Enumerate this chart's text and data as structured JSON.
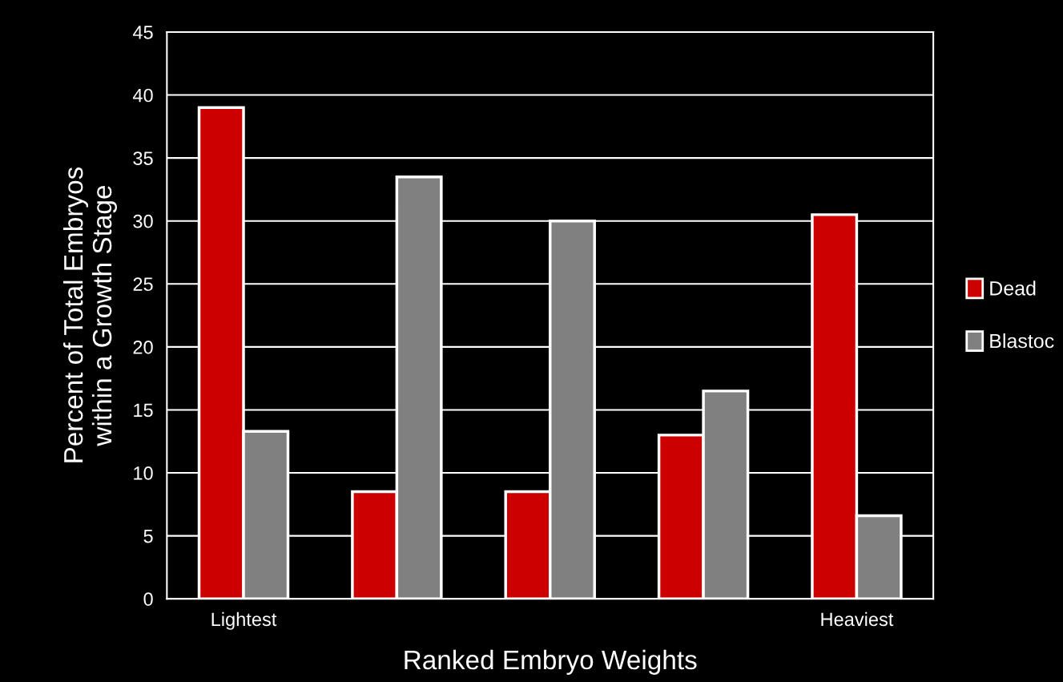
{
  "chart_data": {
    "type": "bar",
    "xlabel": "Ranked Embryo Weights",
    "ylabel": "Percent of Total Embryos\nwithin a Growth Stage",
    "categories": [
      "Lightest",
      null,
      null,
      null,
      "Heaviest"
    ],
    "series": [
      {
        "name": "Dead",
        "color": "#cc0000",
        "values": [
          39,
          8.5,
          8.5,
          13,
          30.5
        ]
      },
      {
        "name": "Blastoc",
        "color": "#808080",
        "values": [
          13.3,
          33.5,
          30,
          16.5,
          6.6
        ]
      }
    ],
    "ylim": [
      0,
      45
    ],
    "yticks": [
      0,
      5,
      10,
      15,
      20,
      25,
      30,
      35,
      40,
      45
    ],
    "grid": "y",
    "legend": "right"
  }
}
